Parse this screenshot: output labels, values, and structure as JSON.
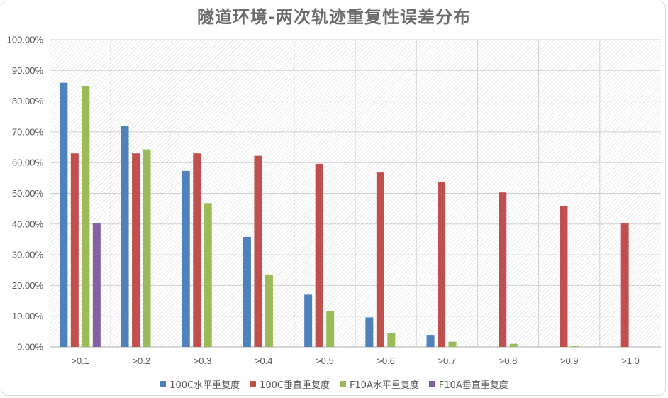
{
  "chart_data": {
    "type": "bar",
    "title": "隧道环境-两次轨迹重复性误差分布",
    "categories": [
      ">0.1",
      ">0.2",
      ">0.3",
      ">0.4",
      ">0.5",
      ">0.6",
      ">0.7",
      ">0.8",
      ">0.9",
      ">1.0"
    ],
    "y_ticks": [
      "0.00%",
      "10.00%",
      "20.00%",
      "30.00%",
      "40.00%",
      "50.00%",
      "60.00%",
      "70.00%",
      "80.00%",
      "90.00%",
      "100.00%"
    ],
    "ylim": [
      0,
      100
    ],
    "grid": true,
    "legend_position": "bottom",
    "series": [
      {
        "name": "100C水平重复度",
        "color": "#4f81bd",
        "values": [
          86,
          72,
          57.3,
          35.8,
          17,
          9.6,
          3.9,
          0,
          0,
          0
        ]
      },
      {
        "name": "100C垂直重复度",
        "color": "#c0504d",
        "values": [
          63,
          63,
          63,
          62.2,
          59.6,
          56.8,
          53.6,
          50.3,
          45.8,
          40.4
        ]
      },
      {
        "name": "F10A水平重复度",
        "color": "#9bbb59",
        "values": [
          85,
          64.3,
          46.8,
          23.6,
          11.7,
          4.4,
          1.7,
          1.0,
          0.4,
          0
        ]
      },
      {
        "name": "F10A垂直重复度",
        "color": "#8064a2",
        "values": [
          40.4,
          0,
          0,
          0,
          0,
          0,
          0,
          0,
          0,
          0
        ]
      }
    ]
  }
}
